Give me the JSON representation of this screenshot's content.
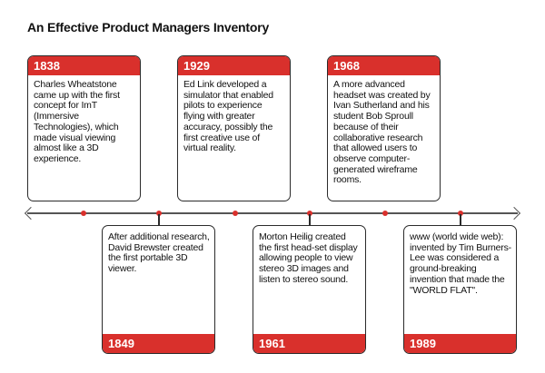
{
  "title": "An Effective Product Managers Inventory",
  "colors": {
    "accent": "#d9302c",
    "border": "#2b2b2b",
    "axis": "#555555"
  },
  "events": [
    {
      "year": "1838",
      "text": "Charles Wheatstone came up with the first concept for ImT (Immersive Technologies), which made visual viewing almost like a 3D experience."
    },
    {
      "year": "1849",
      "text": "After additional research, David Brewster created the first portable 3D viewer."
    },
    {
      "year": "1929",
      "text": "Ed Link developed a simulator that enabled pilots to experience flying with greater accuracy, possibly the first creative use of virtual reality."
    },
    {
      "year": "1961",
      "text": "Morton Heilig created the first head-set display allowing people to view stereo 3D images and listen to stereo sound."
    },
    {
      "year": "1968",
      "text": "A more advanced headset was created by Ivan Sutherland and his student Bob Sproull because of their collaborative research that allowed users to observe computer-generated wireframe rooms."
    },
    {
      "year": "1989",
      "text": "www (world wide web): invented by Tim Burners-Lee was considered a ground-breaking invention that made the \"WORLD FLAT\"."
    }
  ]
}
